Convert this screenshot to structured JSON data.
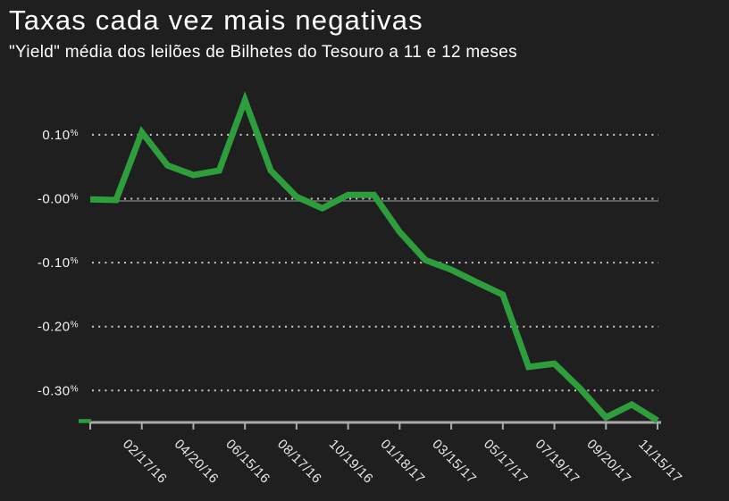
{
  "header": {
    "title": "Taxas cada vez mais negativas",
    "subtitle": "\"Yield\" média dos leilões de Bilhetes do Tesouro a 11 e 12 meses"
  },
  "chart_data": {
    "type": "line",
    "title": "Taxas cada vez mais negativas",
    "subtitle": "\"Yield\" média dos leilões de Bilhetes do Tesouro a 11 e 12 meses",
    "unit": "%",
    "series": [
      {
        "name": "Yield média dos leilões de Bilhetes do Tesouro a 11 e 12 meses",
        "color": "#2e9e3c",
        "values": [
          -0.001,
          -0.002,
          0.104,
          0.052,
          0.037,
          0.044,
          0.154,
          0.044,
          0.003,
          -0.015,
          0.006,
          0.006,
          -0.052,
          -0.096,
          -0.111,
          -0.131,
          -0.15,
          -0.263,
          -0.258,
          -0.297,
          -0.342,
          -0.322,
          -0.347
        ]
      }
    ],
    "x_tick_labels": [
      "",
      "02/17/16",
      "04/20/16",
      "06/15/16",
      "08/17/16",
      "10/19/16",
      "01/18/17",
      "03/15/17",
      "05/17/17",
      "07/19/17",
      "09/20/17",
      "11/15/17"
    ],
    "x_ticks_every_n_points": 2,
    "y_ticks": [
      {
        "value": 0.1,
        "label": "0.10%"
      },
      {
        "value": 0.0,
        "label": "-0.00%"
      },
      {
        "value": -0.1,
        "label": "-0.10%"
      },
      {
        "value": -0.2,
        "label": "-0.20%"
      },
      {
        "value": -0.3,
        "label": "-0.30%"
      }
    ],
    "ylim": [
      -0.35,
      0.165
    ],
    "xlabel": "",
    "ylabel": "",
    "grid": "horizontal-dotted",
    "legend": "none",
    "colors": {
      "background": "#1f1f1f",
      "line": "#2e9e3c",
      "title_text": "#ffffff",
      "axis": "#ababab",
      "gridline": "#cccccc",
      "zero_line": "rgba(255,255,255,0.45)",
      "y_tick_label": "#f2f2f2",
      "x_tick_label": "#e8e8e8"
    }
  }
}
